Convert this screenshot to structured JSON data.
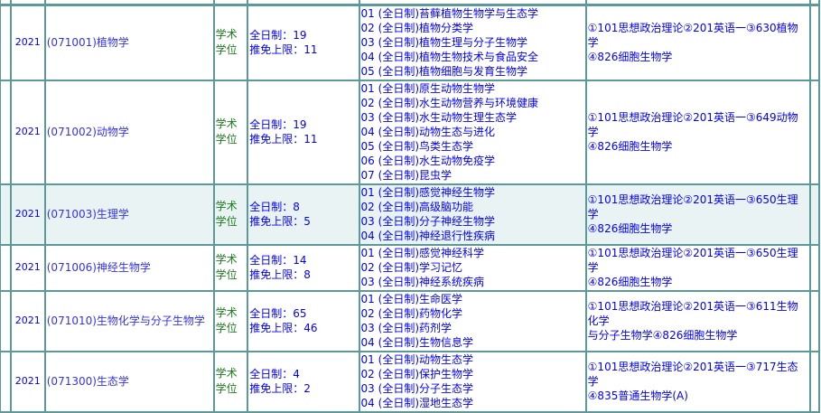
{
  "rows": [
    {
      "year": "2021",
      "major": "(071001)植物学",
      "type": [
        "学术",
        "学位"
      ],
      "full_time": "全日制：19",
      "exempt": "推免上限：11",
      "directions": [
        "01 (全日制)苔藓植物生物学与生态学",
        "02 (全日制)植物分类学",
        "03 (全日制)植物生理与分子生物学",
        "04 (全日制)植物生物技术与食品安全",
        "05 (全日制)植物细胞与发育生物学"
      ],
      "exams": [
        "①101思想政治理论②201英语一③630植物学",
        "④826细胞生物学"
      ]
    },
    {
      "year": "2021",
      "major": "(071002)动物学",
      "type": [
        "学术",
        "学位"
      ],
      "full_time": "全日制：19",
      "exempt": "推免上限：11",
      "directions": [
        "01 (全日制)原生动物生物学",
        "02 (全日制)水生动物营养与环境健康",
        "03 (全日制)水生动物生理生态学",
        "04 (全日制)动物生态与进化",
        "05 (全日制)鸟类生态学",
        "06 (全日制)水生动物免疫学",
        "07 (全日制)昆虫学"
      ],
      "exams": [
        "①101思想政治理论②201英语一③649动物学",
        "④826细胞生物学"
      ]
    },
    {
      "year": "2021",
      "major": "(071003)生理学",
      "type": [
        "学术",
        "学位"
      ],
      "full_time": "全日制：8",
      "exempt": "推免上限：5",
      "directions": [
        "01 (全日制)感觉神经生物学",
        "02 (全日制)高级脑功能",
        "03 (全日制)分子神经生物学",
        "04 (全日制)神经退行性疾病"
      ],
      "exams": [
        "①101思想政治理论②201英语一③650生理学",
        "④826细胞生物学"
      ]
    },
    {
      "year": "2021",
      "major": "(071006)神经生物学",
      "type": [
        "学术",
        "学位"
      ],
      "full_time": "全日制：14",
      "exempt": "推免上限：8",
      "directions": [
        "01 (全日制)感觉神经科学",
        "02 (全日制)学习记忆",
        "03 (全日制)神经系统疾病"
      ],
      "exams": [
        "①101思想政治理论②201英语一③650生理学",
        "④826细胞生物学"
      ]
    },
    {
      "year": "2021",
      "major": "(071010)生物化学与分子生物学",
      "type": [
        "学术",
        "学位"
      ],
      "full_time": "全日制：65",
      "exempt": "推免上限：46",
      "directions": [
        "01 (全日制)生命医学",
        "02 (全日制)药物化学",
        "03 (全日制)药剂学",
        "04 (全日制)生物信息学"
      ],
      "exams": [
        "①101思想政治理论②201英语一③611生物化学",
        "与分子生物学④826细胞生物学"
      ]
    },
    {
      "year": "2021",
      "major": "(071300)生态学",
      "type": [
        "学术",
        "学位"
      ],
      "full_time": "全日制：4",
      "exempt": "推免上限：2",
      "directions": [
        "01 (全日制)动物生态学",
        "02 (全日制)保护生物学",
        "03 (全日制)分子生态学",
        "04 (全日制)湿地生态学"
      ],
      "exams": [
        "①101思想政治理论②201英语一③717生态学",
        "④835普通生物学(A)"
      ]
    }
  ]
}
